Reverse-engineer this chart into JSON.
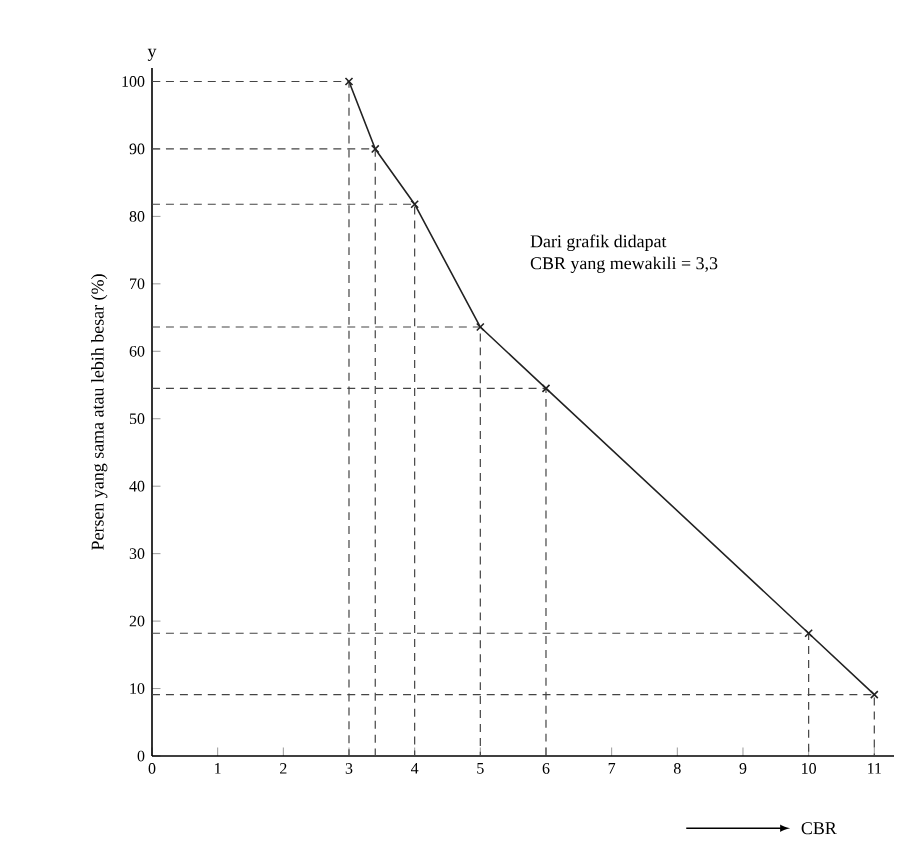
{
  "chart_data": {
    "type": "line",
    "xlabel": "CBR",
    "ylabel": "Persen yang sama atau lebih besar (%)",
    "annotations": [
      "y",
      "Dari grafik didapat",
      "CBR yang mewakili = 3,3"
    ],
    "xlim": [
      0,
      11.3
    ],
    "ylim": [
      0,
      102
    ],
    "xticks": [
      0,
      1,
      2,
      3,
      4,
      5,
      6,
      7,
      8,
      9,
      10,
      11
    ],
    "yticks": [
      0,
      10,
      20,
      30,
      40,
      50,
      60,
      70,
      80,
      90,
      100
    ],
    "grid": false,
    "series": [
      {
        "color": "#222222",
        "line_style": "solid",
        "marker": "cross",
        "x": [
          3,
          3.4,
          4,
          5,
          6,
          10,
          11
        ],
        "values": [
          100,
          90,
          81.8,
          63.6,
          54.5,
          18.2,
          9.1
        ]
      },
      {
        "color": "#444444",
        "line_style": "dashed",
        "x": [
          0,
          3,
          3
        ],
        "values": [
          100,
          100,
          0
        ]
      },
      {
        "color": "#444444",
        "line_style": "dashed",
        "x": [
          0,
          3.4,
          3.4
        ],
        "values": [
          90,
          90,
          0
        ]
      },
      {
        "color": "#444444",
        "line_style": "dashed",
        "x": [
          0,
          4,
          4
        ],
        "values": [
          81.8,
          81.8,
          0
        ]
      },
      {
        "color": "#444444",
        "line_style": "dashed",
        "x": [
          0,
          5,
          5
        ],
        "values": [
          63.6,
          63.6,
          0
        ]
      },
      {
        "color": "#444444",
        "line_style": "dashed",
        "x": [
          0,
          6,
          6
        ],
        "values": [
          54.5,
          54.5,
          0
        ]
      },
      {
        "color": "#444444",
        "line_style": "dashed",
        "x": [
          0,
          10,
          10
        ],
        "values": [
          18.2,
          18.2,
          0
        ]
      },
      {
        "color": "#444444",
        "line_style": "dashed",
        "x": [
          0,
          11,
          11
        ],
        "values": [
          9.1,
          9.1,
          0
        ]
      }
    ]
  }
}
